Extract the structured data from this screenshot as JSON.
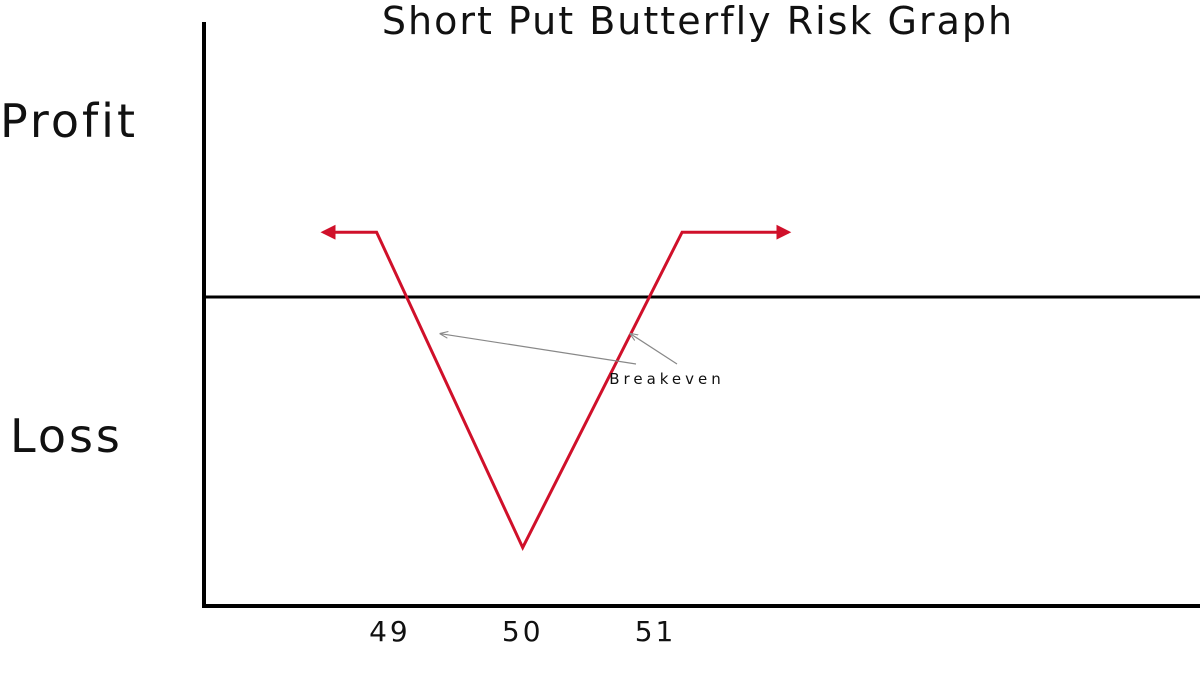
{
  "chart_data": {
    "type": "line",
    "title": "Short Put Butterfly Risk Graph",
    "ylabel_top": "Profit",
    "ylabel_bottom": "Loss",
    "xlabel": "",
    "x_ticks": [
      49,
      50,
      51
    ],
    "xlim": [
      47.6,
      55.1
    ],
    "ylim": [
      -1.2,
      1.3
    ],
    "grid": false,
    "series": [
      {
        "color": "#d0102a",
        "x": [
          48.5,
          48.9,
          50.0,
          51.2,
          52.0
        ],
        "y": [
          0.4,
          0.4,
          -0.95,
          0.4,
          0.4
        ],
        "arrows": [
          "left",
          "right"
        ]
      }
    ],
    "annotations": [
      {
        "text": "Breakeven",
        "points_to": [
          [
            49.32,
            0
          ],
          [
            50.87,
            0
          ]
        ]
      }
    ],
    "colors": {
      "axis": "#000000",
      "payoff": "#d0102a",
      "annotation_arrow": "#888888"
    }
  }
}
